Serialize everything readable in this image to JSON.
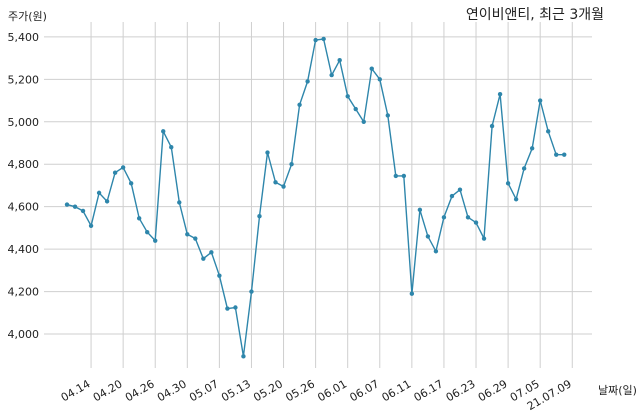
{
  "chart_data": {
    "type": "line",
    "title": "연이비앤티, 최근 3개월",
    "ylabel": "주가(원)",
    "xlabel": "날짜(일)",
    "ylim": [
      3840,
      5470
    ],
    "yticks": [
      4000,
      4200,
      4400,
      4600,
      4800,
      5000,
      5200,
      5400
    ],
    "ytick_labels": [
      "4,000",
      "4,200",
      "4,400",
      "4,600",
      "4,800",
      "5,000",
      "5,200",
      "5,400"
    ],
    "xtick_labels": [
      "04.14",
      "04.20",
      "04.26",
      "04.30",
      "05.07",
      "05.13",
      "05.20",
      "05.26",
      "06.01",
      "06.07",
      "06.11",
      "06.17",
      "06.23",
      "06.29",
      "07.05",
      "21.07.09"
    ],
    "xtick_positions": [
      3,
      7,
      11,
      15,
      19,
      23,
      27,
      31,
      35,
      39,
      43,
      47,
      51,
      55,
      59,
      63
    ],
    "grid": true,
    "line_color": "#2e86ab",
    "series": [
      {
        "values": [
          4610,
          4600,
          4580,
          4510,
          4665,
          4625,
          4760,
          4785,
          4710,
          4545,
          4480,
          4440,
          4955,
          4880,
          4620,
          4470,
          4450,
          4355,
          4385,
          4275,
          4120,
          4125,
          3895,
          4200,
          4555,
          4855,
          4715,
          4695,
          4800,
          5080,
          5190,
          5385,
          5390,
          5220,
          5290,
          5120,
          5060,
          5000,
          5250,
          5200,
          5030,
          4745,
          4745,
          4190,
          4585,
          4460,
          4390,
          4550,
          4650,
          4680,
          4550,
          4525,
          4450,
          4980,
          5130,
          4710,
          4635,
          4780,
          4875,
          5100,
          4955,
          4845,
          4845
        ]
      }
    ]
  }
}
